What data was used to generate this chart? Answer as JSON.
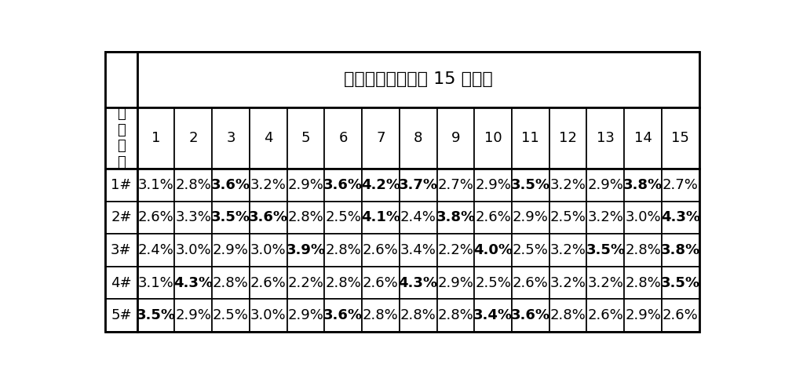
{
  "title": "游离铅含量（共计 15 个点）",
  "col_headers": [
    "1",
    "2",
    "3",
    "4",
    "5",
    "6",
    "7",
    "8",
    "9",
    "10",
    "11",
    "12",
    "13",
    "14",
    "15"
  ],
  "row_labels": [
    "1#",
    "2#",
    "3#",
    "4#",
    "5#"
  ],
  "table_data": [
    [
      "3.1%",
      "2.8%",
      "3.6%",
      "3.2%",
      "2.9%",
      "3.6%",
      "4.2%",
      "3.7%",
      "2.7%",
      "2.9%",
      "3.5%",
      "3.2%",
      "2.9%",
      "3.8%",
      "2.7%"
    ],
    [
      "2.6%",
      "3.3%",
      "3.5%",
      "3.6%",
      "2.8%",
      "2.5%",
      "4.1%",
      "2.4%",
      "3.8%",
      "2.6%",
      "2.9%",
      "2.5%",
      "3.2%",
      "3.0%",
      "4.3%"
    ],
    [
      "2.4%",
      "3.0%",
      "2.9%",
      "3.0%",
      "3.9%",
      "2.8%",
      "2.6%",
      "3.4%",
      "2.2%",
      "4.0%",
      "2.5%",
      "3.2%",
      "3.5%",
      "2.8%",
      "3.8%"
    ],
    [
      "3.1%",
      "4.3%",
      "2.8%",
      "2.6%",
      "2.2%",
      "2.8%",
      "2.6%",
      "4.3%",
      "2.9%",
      "2.5%",
      "2.6%",
      "3.2%",
      "3.2%",
      "2.8%",
      "3.5%"
    ],
    [
      "3.5%",
      "2.9%",
      "2.5%",
      "3.0%",
      "2.9%",
      "3.6%",
      "2.8%",
      "2.8%",
      "2.8%",
      "3.4%",
      "3.6%",
      "2.8%",
      "2.6%",
      "2.9%",
      "2.6%"
    ]
  ],
  "bold_cells": [
    [
      [
        0,
        2
      ],
      [
        0,
        5
      ],
      [
        0,
        6
      ],
      [
        0,
        7
      ],
      [
        0,
        10
      ],
      [
        0,
        13
      ]
    ],
    [
      [
        1,
        2
      ],
      [
        1,
        3
      ],
      [
        1,
        6
      ],
      [
        1,
        8
      ],
      [
        1,
        14
      ]
    ],
    [
      [
        2,
        4
      ],
      [
        2,
        9
      ],
      [
        2,
        12
      ],
      [
        2,
        14
      ]
    ],
    [
      [
        3,
        1
      ],
      [
        3,
        7
      ],
      [
        3,
        14
      ]
    ],
    [
      [
        4,
        0
      ],
      [
        4,
        5
      ],
      [
        4,
        9
      ],
      [
        4,
        10
      ]
    ]
  ],
  "bg_color": "#ffffff",
  "border_color": "#000000",
  "font_size": 13,
  "title_font_size": 16
}
